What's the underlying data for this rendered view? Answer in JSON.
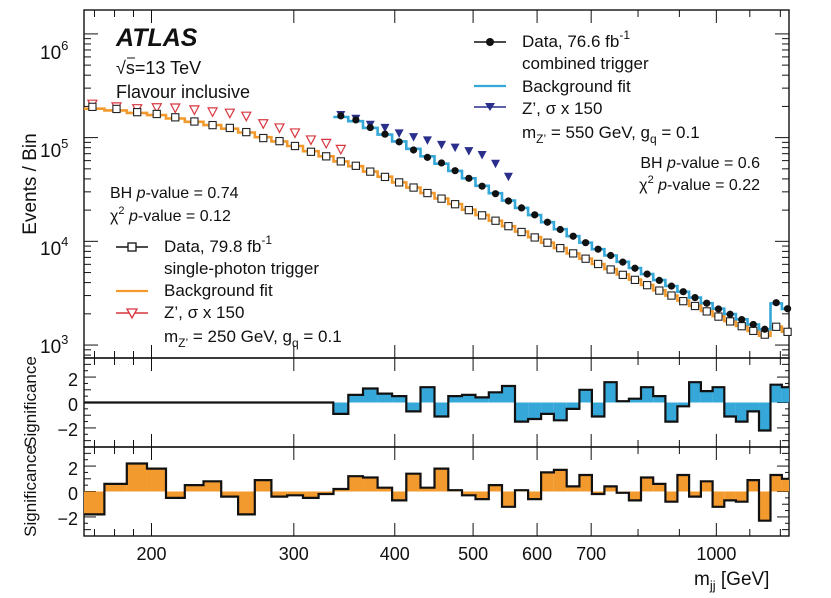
{
  "chart_data": {
    "type": "line",
    "experiment": "ATLAS",
    "energy": "√s=13 TeV",
    "category": "Flavour inclusive",
    "xlabel": "m",
    "xlabel_sub": "jj",
    "xlabel_unit": " [GeV]",
    "xscale": "log",
    "xlim": [
      165,
      1230
    ],
    "xticks": [
      200,
      300,
      400,
      500,
      600,
      700,
      1000
    ],
    "main": {
      "ylabel": "Events / Bin",
      "yscale": "log",
      "ylim": [
        750,
        1700000
      ],
      "yticks": [
        "10^3",
        "10^4",
        "10^5",
        "10^6"
      ]
    },
    "sig_panels": [
      {
        "name": "combined-significance",
        "ylabel": "Significance",
        "ylim": [
          -3.5,
          3.5
        ],
        "yticks": [
          "2",
          "0",
          "−2"
        ]
      },
      {
        "name": "single-photon-significance",
        "ylabel": "Significance",
        "ylim": [
          -3.5,
          3.5
        ],
        "yticks": [
          "2",
          "0",
          "−2"
        ]
      }
    ],
    "single_photon": {
      "legend": {
        "data": "Data, 79.8 fb",
        "data_sup": "-1",
        "data_line2": "single-photon trigger",
        "fit": "Background fit",
        "signal": "Z’, σ x 150",
        "mass_pre": "m",
        "mass_sub": "Z’",
        "mass_post": " = 250 GeV, g",
        "coupling_sub": "q",
        "coupling_post": " = 0.1"
      },
      "bh_pvalue_prefix": "BH ",
      "bh_pvalue_label": "p",
      "bh_pvalue_suffix": "-value = 0.74",
      "chi2_prefix": "χ",
      "chi2_sup": "2",
      "chi2_label": "p",
      "chi2_suffix": "-value = 0.12",
      "color_fit": "#f39a2e",
      "color_signal": "#d9363e",
      "x": [
        169,
        181,
        192,
        203,
        214,
        226,
        238,
        250,
        262,
        275,
        288,
        301,
        315,
        329,
        343,
        358,
        373,
        389,
        405,
        422,
        439,
        457,
        475,
        494,
        513,
        533,
        553,
        574,
        596,
        618,
        641,
        665,
        689,
        714,
        740,
        766,
        793,
        821,
        850,
        880,
        910,
        941,
        973,
        1006,
        1040,
        1075,
        1111,
        1148,
        1186,
        1225
      ],
      "data": [
        198000,
        189000,
        176000,
        169000,
        157000,
        143000,
        132000,
        124000,
        113000,
        99000,
        92500,
        83000,
        73000,
        66000,
        59000,
        53500,
        47000,
        41800,
        37000,
        33000,
        29200,
        25800,
        22800,
        20000,
        17800,
        15800,
        14000,
        12300,
        10900,
        9700,
        8600,
        7650,
        6800,
        6050,
        5350,
        4750,
        4250,
        3780,
        3350,
        3000,
        2650,
        2380,
        2110,
        1880,
        1690,
        1520,
        1370,
        1260,
        1500,
        1340
      ],
      "fit": [
        190000,
        183000,
        173000,
        165000,
        153000,
        142000,
        132000,
        122000,
        112000,
        101000,
        92000,
        83000,
        74000,
        66000,
        59000,
        53000,
        47000,
        42000,
        37000,
        33000,
        29200,
        25900,
        22900,
        20200,
        17900,
        15800,
        14000,
        12400,
        10950,
        9700,
        8600,
        7650,
        6800,
        6050,
        5400,
        4800,
        4280,
        3800,
        3370,
        3000,
        2680,
        2390,
        2130,
        1900,
        1700,
        1525,
        1370,
        1230,
        1510,
        1345
      ],
      "signal_x": [
        169,
        181,
        192,
        203,
        214,
        226,
        238,
        250,
        262,
        275,
        288,
        301,
        315,
        329,
        343
      ],
      "signal": [
        210000,
        198000,
        190000,
        194000,
        193000,
        185000,
        177000,
        172000,
        161000,
        136000,
        124000,
        111000,
        95000,
        88000,
        77000
      ],
      "signif": [
        -1.8,
        0.6,
        2.2,
        1.8,
        -0.5,
        0.5,
        0.8,
        -0.4,
        -1.8,
        0.9,
        -0.4,
        -0.3,
        -0.5,
        -0.2,
        0.2,
        1.2,
        1.1,
        0.3,
        -0.7,
        1.4,
        0.3,
        1.8,
        0.1,
        -0.3,
        -0.6,
        0.5,
        -1.2,
        0.1,
        -0.6,
        1.5,
        1.7,
        0.4,
        1.3,
        -0.2,
        0.4,
        -0.1,
        -0.7,
        1.1,
        0.6,
        -0.8,
        1.3,
        -0.4,
        0.8,
        -1.2,
        -0.7,
        -0.8,
        0.9,
        -2.3,
        1.3,
        1.0
      ]
    },
    "combined": {
      "legend": {
        "data": "Data, 76.6 fb",
        "data_sup": "-1",
        "data_line2": "combined trigger",
        "fit": "Background fit",
        "signal": "Z’, σ x 150",
        "mass_pre": "m",
        "mass_sub": "Z’",
        "mass_post": " = 550 GeV, g",
        "coupling_sub": "q",
        "coupling_post": " = 0.1"
      },
      "bh_pvalue_prefix": "BH ",
      "bh_pvalue_label": "p",
      "bh_pvalue_suffix": "-value = 0.6",
      "chi2_prefix": "χ",
      "chi2_sup": "2",
      "chi2_label": "p",
      "chi2_suffix": "-value = 0.22",
      "color_fit": "#35a7d9",
      "color_signal": "#2a2f8c",
      "x": [
        343,
        358,
        373,
        389,
        405,
        422,
        439,
        457,
        475,
        494,
        513,
        533,
        553,
        574,
        596,
        618,
        641,
        665,
        689,
        714,
        740,
        766,
        793,
        821,
        850,
        880,
        910,
        941,
        973,
        1006,
        1040,
        1075,
        1111,
        1148,
        1186,
        1225
      ],
      "data": [
        162000,
        148000,
        125000,
        108000,
        91000,
        76000,
        64500,
        57000,
        48000,
        40500,
        34000,
        28800,
        24500,
        21000,
        18000,
        15300,
        13000,
        11200,
        9700,
        8400,
        7300,
        6300,
        5500,
        4830,
        4200,
        3700,
        3270,
        2870,
        2530,
        2230,
        1980,
        1760,
        1580,
        1420,
        2560,
        2240
      ],
      "fit": [
        158000,
        144000,
        124000,
        107000,
        92000,
        78000,
        66000,
        56000,
        47800,
        40500,
        34300,
        29100,
        24700,
        21000,
        17900,
        15300,
        13100,
        11200,
        9700,
        8400,
        7300,
        6350,
        5530,
        4830,
        4230,
        3710,
        3260,
        2870,
        2530,
        2240,
        1990,
        1770,
        1580,
        1420,
        2520,
        2230
      ],
      "signal_x": [
        343,
        358,
        373,
        389,
        405,
        422,
        439,
        457,
        475,
        494,
        513,
        533,
        553
      ],
      "signal": [
        165000,
        152000,
        133000,
        124000,
        110000,
        101000,
        94000,
        85000,
        80000,
        74000,
        68000,
        56000,
        42000
      ],
      "signif": [
        -0.9,
        0.6,
        1.1,
        0.7,
        0.5,
        -0.7,
        1.2,
        -1.1,
        0.5,
        0.6,
        0.4,
        0.8,
        1.3,
        -1.5,
        -1.3,
        -0.9,
        -1.4,
        -0.5,
        1.0,
        -1.1,
        1.6,
        0.1,
        0.3,
        1.2,
        0.5,
        -1.5,
        -0.3,
        1.6,
        0.9,
        1.2,
        -1.1,
        -1.5,
        -0.7,
        -2.2,
        1.4,
        1.2
      ]
    }
  }
}
